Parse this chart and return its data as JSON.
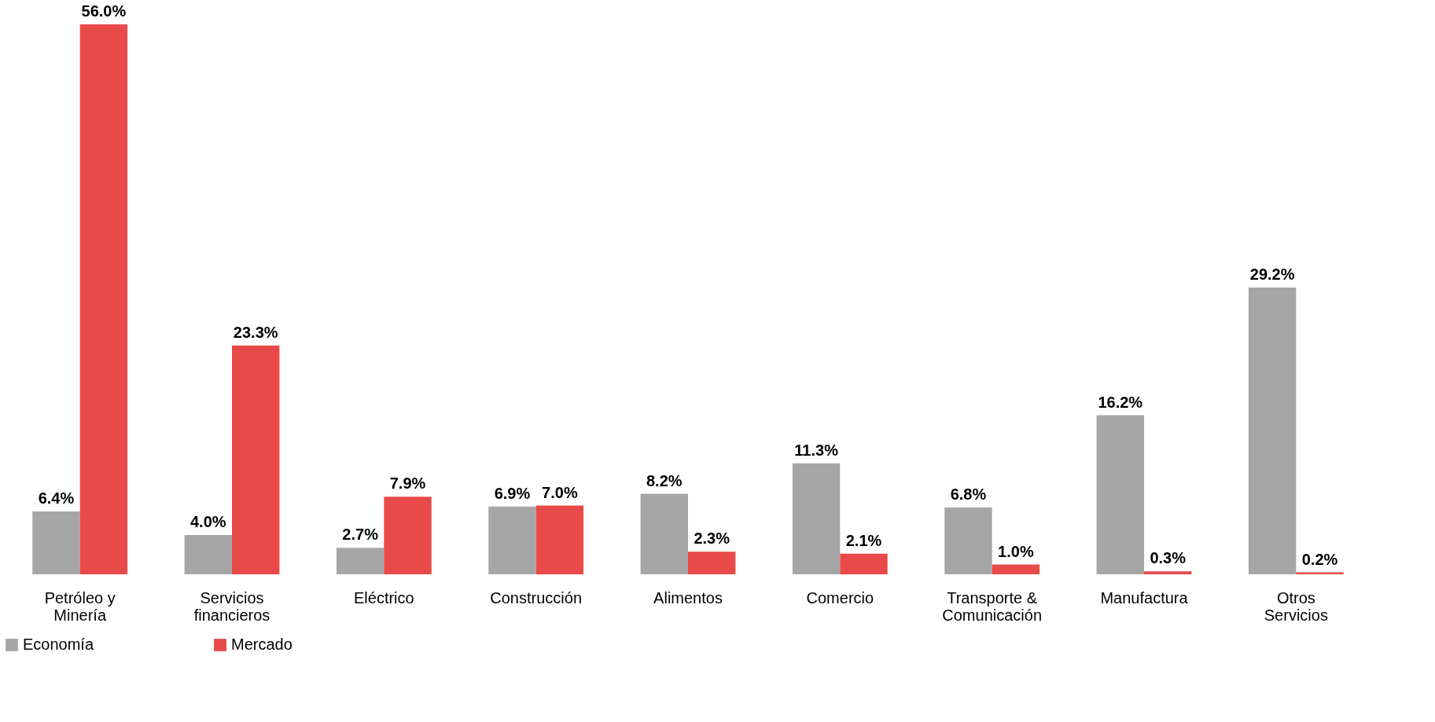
{
  "chart_data": {
    "type": "bar",
    "categories": [
      "Petróleo y Minería",
      "Servicios financieros",
      "Eléctrico",
      "Construcción",
      "Alimentos",
      "Comercio",
      "Transporte & Comunicación",
      "Manufactura",
      "Otros Servicios"
    ],
    "series": [
      {
        "name": "Economía",
        "color": "#a6a6a6",
        "values": [
          6.4,
          4.0,
          2.7,
          6.9,
          8.2,
          11.3,
          6.8,
          16.2,
          29.2
        ],
        "value_labels": [
          "6.4%",
          "4.0%",
          "2.7%",
          "6.9%",
          "8.2%",
          "11.3%",
          "6.8%",
          "16.2%",
          "29.2%"
        ]
      },
      {
        "name": "Mercado",
        "color": "#e84a4a",
        "values": [
          56.0,
          23.3,
          7.9,
          7.0,
          2.3,
          2.1,
          1.0,
          0.3,
          0.2
        ],
        "value_labels": [
          "56.0%",
          "23.3%",
          "7.9%",
          "7.0%",
          "2.3%",
          "2.1%",
          "1.0%",
          "0.3%",
          "0.2%"
        ]
      }
    ],
    "legend": "bottom",
    "grid": false
  }
}
